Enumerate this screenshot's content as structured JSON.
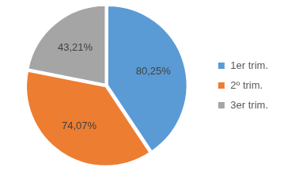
{
  "chart_data": {
    "type": "pie",
    "categories": [
      "1er trim.",
      "2º trim.",
      "3er trim."
    ],
    "values": [
      80.25,
      74.07,
      43.21
    ],
    "value_labels": [
      "80,25%",
      "74,07%",
      "43,21%"
    ],
    "colors": [
      "#5b9bd5",
      "#ed7d31",
      "#a5a5a5"
    ],
    "legend": "right",
    "data_labels": true
  }
}
